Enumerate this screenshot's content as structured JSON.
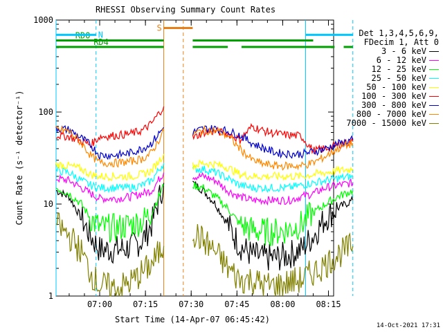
{
  "chart_data": {
    "type": "line",
    "title": "RHESSI Observing Summary Count Rates",
    "xlabel": "Start Time (14-Apr-07 06:45:42)",
    "ylabel": "Count Rate (s⁻¹ detector⁻¹)",
    "yscale": "log",
    "ylim": [
      1,
      1000
    ],
    "xlim_minutes": [
      6.5,
      97.5
    ],
    "y_ticks": [
      {
        "value": 1,
        "label": "1"
      },
      {
        "value": 10,
        "label": "10"
      },
      {
        "value": 100,
        "label": "100"
      },
      {
        "value": 1000,
        "label": "1000"
      }
    ],
    "x_ticks": [
      {
        "minute": 420,
        "label": "07:00"
      },
      {
        "minute": 435,
        "label": "07:15"
      },
      {
        "minute": 450,
        "label": "07:30"
      },
      {
        "minute": 465,
        "label": "07:45"
      },
      {
        "minute": 480,
        "label": "08:00"
      },
      {
        "minute": 495,
        "label": "08:15"
      }
    ],
    "x_origin_minute": 405.7,
    "segments": [
      {
        "start": 405.7,
        "end": 441.0
      },
      {
        "start": 450.5,
        "end": 503.0
      }
    ],
    "attenuator_line": {
      "value": 14.8,
      "color": "#e8801a"
    },
    "series": [
      {
        "name": "3 - 6 keV",
        "color": "#000000",
        "points": [
          [
            405.7,
            14
          ],
          [
            410,
            12
          ],
          [
            414,
            7
          ],
          [
            417,
            4.5
          ],
          [
            420,
            3.2
          ],
          [
            426,
            3.2
          ],
          [
            430,
            3.4
          ],
          [
            434,
            4
          ],
          [
            437,
            6
          ],
          [
            441,
            17
          ],
          [
            450.5,
            17
          ],
          [
            454,
            14
          ],
          [
            458,
            10
          ],
          [
            462,
            6
          ],
          [
            466,
            3.5
          ],
          [
            470,
            2.8
          ],
          [
            474,
            2.6
          ],
          [
            478,
            2.6
          ],
          [
            482,
            2.8
          ],
          [
            486,
            3.2
          ],
          [
            490,
            4.5
          ],
          [
            494,
            7
          ],
          [
            498,
            9
          ],
          [
            503,
            11
          ]
        ]
      },
      {
        "name": "6 - 12 keV",
        "color": "#ff00ff",
        "points": [
          [
            405.7,
            19
          ],
          [
            410,
            18
          ],
          [
            414,
            15
          ],
          [
            417,
            13
          ],
          [
            420,
            11.5
          ],
          [
            426,
            11.5
          ],
          [
            430,
            12
          ],
          [
            434,
            13
          ],
          [
            437,
            14
          ],
          [
            441,
            22
          ],
          [
            450.5,
            20
          ],
          [
            454,
            20
          ],
          [
            458,
            18
          ],
          [
            462,
            14
          ],
          [
            466,
            12
          ],
          [
            470,
            11
          ],
          [
            474,
            11
          ],
          [
            478,
            11
          ],
          [
            482,
            11
          ],
          [
            486,
            12
          ],
          [
            490,
            13
          ],
          [
            494,
            15
          ],
          [
            498,
            16
          ],
          [
            503,
            17
          ]
        ]
      },
      {
        "name": "12 - 25 keV",
        "color": "#00ff00",
        "points": [
          [
            405.7,
            15
          ],
          [
            410,
            13
          ],
          [
            414,
            10
          ],
          [
            417,
            7
          ],
          [
            420,
            5.5
          ],
          [
            426,
            5.5
          ],
          [
            430,
            6
          ],
          [
            434,
            6.5
          ],
          [
            437,
            8
          ],
          [
            441,
            16
          ],
          [
            450.5,
            16
          ],
          [
            454,
            15
          ],
          [
            458,
            12
          ],
          [
            462,
            9
          ],
          [
            466,
            6
          ],
          [
            470,
            5.2
          ],
          [
            474,
            5
          ],
          [
            478,
            5
          ],
          [
            482,
            5.3
          ],
          [
            486,
            6
          ],
          [
            490,
            8
          ],
          [
            494,
            10
          ],
          [
            498,
            12
          ],
          [
            503,
            14
          ]
        ]
      },
      {
        "name": "25 - 50 keV",
        "color": "#00ffff",
        "points": [
          [
            405.7,
            23
          ],
          [
            410,
            22
          ],
          [
            414,
            18
          ],
          [
            417,
            16
          ],
          [
            420,
            15
          ],
          [
            426,
            15
          ],
          [
            430,
            15
          ],
          [
            434,
            16
          ],
          [
            437,
            18
          ],
          [
            441,
            28
          ],
          [
            450.5,
            24
          ],
          [
            454,
            24
          ],
          [
            458,
            22
          ],
          [
            462,
            19
          ],
          [
            466,
            16
          ],
          [
            470,
            15
          ],
          [
            474,
            15
          ],
          [
            478,
            15
          ],
          [
            482,
            15
          ],
          [
            486,
            16
          ],
          [
            490,
            17
          ],
          [
            494,
            18
          ],
          [
            498,
            19
          ],
          [
            503,
            20
          ]
        ]
      },
      {
        "name": "50 - 100 keV",
        "color": "#ffff00",
        "points": [
          [
            405.7,
            27
          ],
          [
            410,
            26
          ],
          [
            414,
            24
          ],
          [
            417,
            21
          ],
          [
            420,
            20
          ],
          [
            426,
            20
          ],
          [
            430,
            20
          ],
          [
            434,
            21
          ],
          [
            437,
            23
          ],
          [
            441,
            35
          ],
          [
            450.5,
            26
          ],
          [
            454,
            28
          ],
          [
            458,
            27
          ],
          [
            462,
            25
          ],
          [
            466,
            21
          ],
          [
            470,
            20
          ],
          [
            474,
            20
          ],
          [
            478,
            20
          ],
          [
            482,
            20
          ],
          [
            486,
            20
          ],
          [
            490,
            21
          ],
          [
            494,
            22
          ],
          [
            498,
            23
          ],
          [
            503,
            24
          ]
        ]
      },
      {
        "name": "100 - 300 keV",
        "color": "#ff0000",
        "points": [
          [
            405.7,
            56
          ],
          [
            410,
            54
          ],
          [
            414,
            48
          ],
          [
            417,
            44
          ],
          [
            420,
            54
          ],
          [
            426,
            56
          ],
          [
            430,
            58
          ],
          [
            434,
            63
          ],
          [
            437,
            75
          ],
          [
            441,
            115
          ],
          [
            450.5,
            52
          ],
          [
            454,
            60
          ],
          [
            458,
            62
          ],
          [
            462,
            58
          ],
          [
            466,
            50
          ],
          [
            470,
            70
          ],
          [
            474,
            62
          ],
          [
            478,
            58
          ],
          [
            482,
            56
          ],
          [
            486,
            55
          ],
          [
            490,
            38
          ],
          [
            494,
            40
          ],
          [
            498,
            44
          ],
          [
            503,
            48
          ]
        ]
      },
      {
        "name": "300 - 800 keV",
        "color": "#0000cc",
        "points": [
          [
            405.7,
            67
          ],
          [
            410,
            64
          ],
          [
            414,
            52
          ],
          [
            417,
            44
          ],
          [
            420,
            34
          ],
          [
            426,
            34
          ],
          [
            430,
            36
          ],
          [
            434,
            40
          ],
          [
            437,
            46
          ],
          [
            441,
            68
          ],
          [
            450.5,
            60
          ],
          [
            454,
            66
          ],
          [
            458,
            66
          ],
          [
            462,
            62
          ],
          [
            466,
            56
          ],
          [
            470,
            46
          ],
          [
            474,
            40
          ],
          [
            478,
            36
          ],
          [
            482,
            35
          ],
          [
            486,
            35
          ],
          [
            490,
            37
          ],
          [
            494,
            40
          ],
          [
            498,
            45
          ],
          [
            503,
            50
          ]
        ]
      },
      {
        "name": "800 - 7000 keV",
        "color": "#ff8800",
        "points": [
          [
            405.7,
            65
          ],
          [
            410,
            62
          ],
          [
            414,
            46
          ],
          [
            417,
            34
          ],
          [
            420,
            28
          ],
          [
            426,
            28
          ],
          [
            430,
            29
          ],
          [
            434,
            31
          ],
          [
            437,
            36
          ],
          [
            441,
            62
          ],
          [
            450.5,
            58
          ],
          [
            454,
            63
          ],
          [
            458,
            63
          ],
          [
            462,
            55
          ],
          [
            466,
            40
          ],
          [
            470,
            30
          ],
          [
            474,
            27
          ],
          [
            478,
            26
          ],
          [
            482,
            26
          ],
          [
            486,
            26
          ],
          [
            490,
            28
          ],
          [
            494,
            33
          ],
          [
            498,
            40
          ],
          [
            503,
            46
          ]
        ]
      },
      {
        "name": "7000 - 15000 keV",
        "color": "#808000",
        "points": [
          [
            405.7,
            6
          ],
          [
            410,
            4.5
          ],
          [
            414,
            3
          ],
          [
            417,
            1.8
          ],
          [
            420,
            1.3
          ],
          [
            426,
            1.2
          ],
          [
            430,
            1.4
          ],
          [
            434,
            1.8
          ],
          [
            437,
            2.2
          ],
          [
            441,
            3.5
          ],
          [
            450.5,
            5
          ],
          [
            454,
            4
          ],
          [
            458,
            3
          ],
          [
            462,
            2
          ],
          [
            466,
            1.5
          ],
          [
            470,
            1.5
          ],
          [
            474,
            1.3
          ],
          [
            478,
            1.3
          ],
          [
            482,
            1.4
          ],
          [
            486,
            1.5
          ],
          [
            490,
            1.8
          ],
          [
            494,
            2.2
          ],
          [
            498,
            2.8
          ],
          [
            503,
            3.5
          ]
        ]
      }
    ],
    "legend": {
      "header_line1": "Det 1,3,4,5,6,9,",
      "header_line2": "FDecim 1, Att 0",
      "position": "right"
    },
    "flags": [
      {
        "label": "RD0",
        "color": "#00a000",
        "y_value": 600,
        "spans": [
          [
            405.7,
            441.0
          ],
          [
            450.5,
            490.0
          ]
        ]
      },
      {
        "label": "RD4",
        "color": "#00a000",
        "y_value": 510,
        "spans": [
          [
            405.7,
            441.0
          ],
          [
            450.5,
            462.0
          ],
          [
            466.5,
            497.0
          ],
          [
            500,
            503
          ]
        ]
      },
      {
        "label": "N",
        "color": "#00c8ff",
        "y_value": 690,
        "spans": [
          [
            405.7,
            418.8
          ],
          [
            487.5,
            503
          ]
        ]
      },
      {
        "label": "S",
        "color": "#e8801a",
        "y_value": 820,
        "spans": [
          [
            441.0,
            450.5
          ]
        ]
      }
    ],
    "vertical_markers": [
      {
        "minute": 405.7,
        "color": "#00c8ff",
        "style": "solid"
      },
      {
        "minute": 418.8,
        "color": "#00c8ff",
        "style": "dashed"
      },
      {
        "minute": 487.5,
        "color": "#00c8ff",
        "style": "solid"
      },
      {
        "minute": 503.0,
        "color": "#00c8ff",
        "style": "dashed"
      },
      {
        "minute": 441.0,
        "color": "#e8801a",
        "style": "solid"
      },
      {
        "minute": 447.4,
        "color": "#e8801a",
        "style": "dashed"
      }
    ]
  },
  "footer_timestamp": "14-Oct-2021 17:31"
}
